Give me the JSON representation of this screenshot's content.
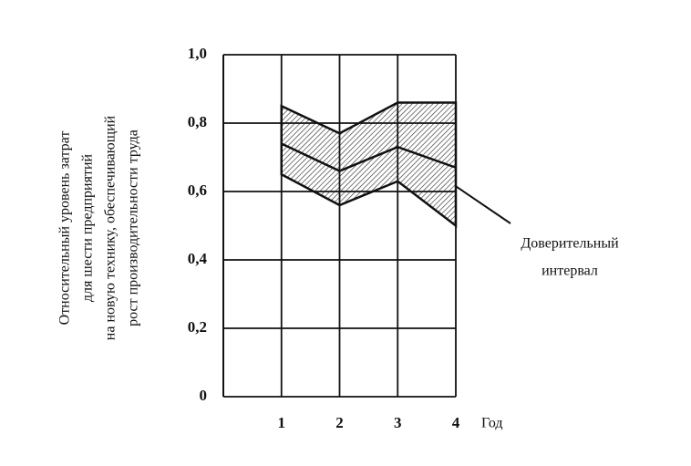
{
  "chart_data": {
    "type": "line",
    "ylabel": [
      "Относительный уровень затрат",
      "для шести предприятий",
      "на новую технику, обеспечивающий",
      "рост производительности труда"
    ],
    "xlabel": "Год",
    "x": [
      1,
      2,
      3,
      4
    ],
    "values": [
      0.74,
      0.66,
      0.73,
      0.67
    ],
    "band": {
      "upper": [
        0.85,
        0.77,
        0.86,
        0.86
      ],
      "lower": [
        0.65,
        0.56,
        0.63,
        0.5
      ]
    },
    "annotation": [
      "Доверительный",
      "интервал"
    ],
    "color": "#111111",
    "xlim": [
      0,
      4
    ],
    "xticks": [
      1,
      2,
      3,
      4
    ],
    "ylim": [
      0,
      1.0
    ],
    "yticks": [
      0,
      {
        "value": 0.2,
        "label": "0,2"
      },
      {
        "value": 0.4,
        "label": "0,4"
      },
      {
        "value": 0.6,
        "label": "0,6"
      },
      {
        "value": 0.8,
        "label": "0,8"
      },
      {
        "value": 1.0,
        "label": "1,0"
      }
    ],
    "grid": true
  }
}
